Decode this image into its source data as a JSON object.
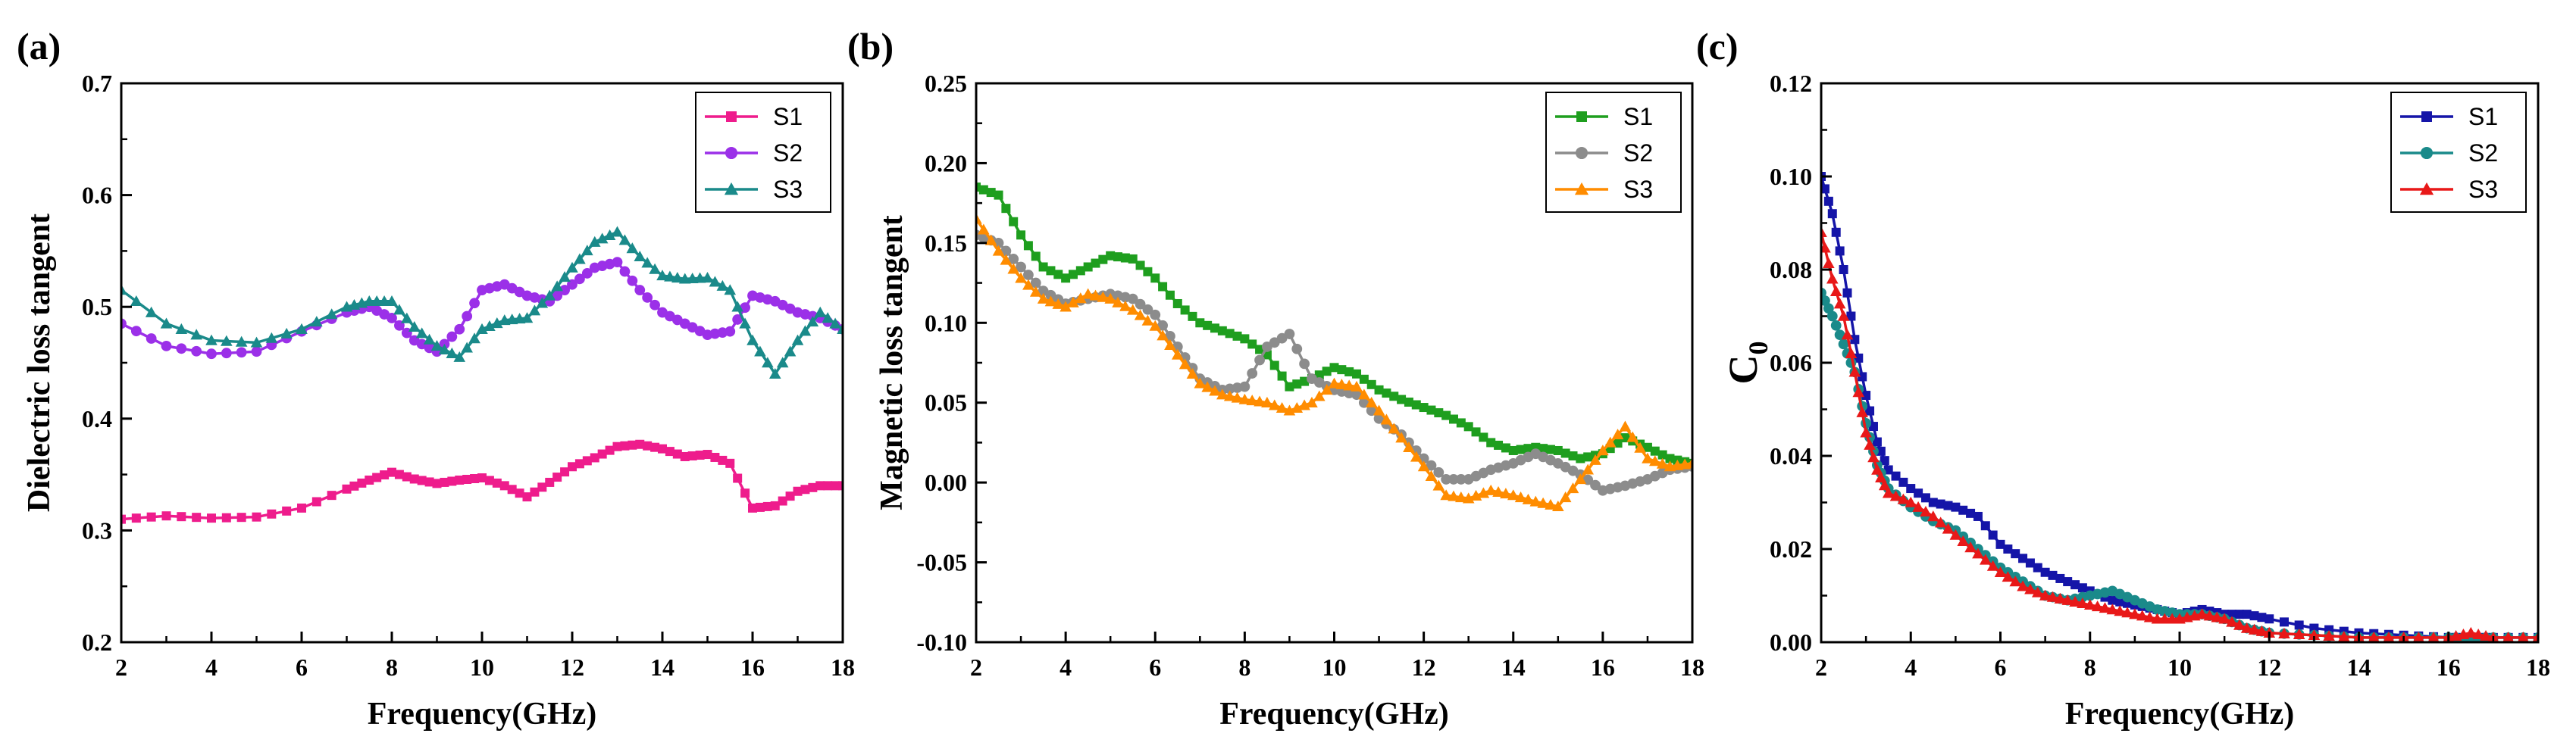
{
  "chart_data": [
    {
      "type": "line",
      "panel_label": "(a)",
      "xlabel": "Frequency(GHz)",
      "ylabel": "Dielectric loss tangent",
      "xlim": [
        2,
        18
      ],
      "ylim": [
        0.2,
        0.7
      ],
      "xticks": [
        "2",
        "4",
        "6",
        "8",
        "10",
        "12",
        "14",
        "16",
        "18"
      ],
      "yticks": [
        "0.2",
        "0.3",
        "0.4",
        "0.5",
        "0.6",
        "0.7"
      ],
      "legend_position": "top-right",
      "x": [
        2,
        3,
        4,
        5,
        6,
        7,
        7.5,
        8,
        8.5,
        9,
        9.5,
        10,
        10.5,
        11,
        11.5,
        12,
        12.5,
        13,
        13.5,
        14,
        14.5,
        15,
        15.5,
        16,
        16.5,
        17,
        17.5,
        18
      ],
      "series": [
        {
          "name": "S1",
          "color": "#ee1c8c",
          "marker": "square",
          "values": [
            0.31,
            0.313,
            0.311,
            0.312,
            0.32,
            0.337,
            0.345,
            0.352,
            0.346,
            0.342,
            0.345,
            0.347,
            0.34,
            0.33,
            0.343,
            0.357,
            0.365,
            0.375,
            0.377,
            0.373,
            0.366,
            0.368,
            0.36,
            0.32,
            0.322,
            0.335,
            0.34,
            0.34
          ]
        },
        {
          "name": "S2",
          "color": "#9b30e8",
          "marker": "circle",
          "values": [
            0.485,
            0.465,
            0.458,
            0.46,
            0.478,
            0.495,
            0.5,
            0.49,
            0.47,
            0.46,
            0.48,
            0.515,
            0.52,
            0.51,
            0.505,
            0.52,
            0.535,
            0.54,
            0.515,
            0.495,
            0.485,
            0.475,
            0.478,
            0.51,
            0.505,
            0.495,
            0.49,
            0.48
          ]
        },
        {
          "name": "S3",
          "color": "#1a8a8a",
          "marker": "triangle",
          "values": [
            0.515,
            0.485,
            0.47,
            0.468,
            0.48,
            0.5,
            0.505,
            0.505,
            0.482,
            0.465,
            0.455,
            0.48,
            0.488,
            0.49,
            0.51,
            0.535,
            0.558,
            0.567,
            0.545,
            0.528,
            0.525,
            0.526,
            0.515,
            0.47,
            0.44,
            0.47,
            0.495,
            0.48
          ]
        }
      ]
    },
    {
      "type": "line",
      "panel_label": "(b)",
      "xlabel": "Frequency(GHz)",
      "ylabel": "Magnetic loss tangent",
      "xlim": [
        2,
        18
      ],
      "ylim": [
        -0.1,
        0.25
      ],
      "xticks": [
        "2",
        "4",
        "6",
        "8",
        "10",
        "12",
        "14",
        "16",
        "18"
      ],
      "yticks": [
        "-0.10",
        "-0.05",
        "0.00",
        "0.05",
        "0.10",
        "0.15",
        "0.20",
        "0.25"
      ],
      "legend_position": "top-right",
      "x": [
        2,
        2.5,
        3,
        3.5,
        4,
        4.5,
        5,
        5.5,
        6,
        6.5,
        7,
        7.5,
        8,
        8.5,
        9,
        9.5,
        10,
        10.5,
        11,
        11.5,
        12,
        12.5,
        13,
        13.5,
        14,
        14.5,
        15,
        15.5,
        16,
        16.5,
        17,
        17.5,
        18
      ],
      "series": [
        {
          "name": "S1",
          "color": "#1e9e1e",
          "marker": "square",
          "values": [
            0.185,
            0.18,
            0.155,
            0.135,
            0.128,
            0.135,
            0.142,
            0.14,
            0.128,
            0.112,
            0.1,
            0.095,
            0.09,
            0.08,
            0.06,
            0.065,
            0.072,
            0.068,
            0.058,
            0.052,
            0.047,
            0.042,
            0.035,
            0.025,
            0.02,
            0.022,
            0.02,
            0.015,
            0.018,
            0.028,
            0.022,
            0.015,
            0.012
          ]
        },
        {
          "name": "S2",
          "color": "#8c8c8c",
          "marker": "circle",
          "values": [
            0.155,
            0.15,
            0.135,
            0.12,
            0.112,
            0.115,
            0.118,
            0.115,
            0.105,
            0.085,
            0.065,
            0.058,
            0.06,
            0.085,
            0.093,
            0.065,
            0.058,
            0.055,
            0.04,
            0.03,
            0.015,
            0.002,
            0.002,
            0.008,
            0.012,
            0.018,
            0.012,
            0.005,
            -0.005,
            -0.002,
            0.002,
            0.008,
            0.01
          ]
        },
        {
          "name": "S3",
          "color": "#ff8c00",
          "marker": "triangle",
          "values": [
            0.165,
            0.145,
            0.128,
            0.115,
            0.11,
            0.118,
            0.115,
            0.108,
            0.098,
            0.08,
            0.062,
            0.055,
            0.052,
            0.05,
            0.045,
            0.05,
            0.062,
            0.06,
            0.045,
            0.028,
            0.01,
            -0.008,
            -0.01,
            -0.005,
            -0.008,
            -0.012,
            -0.015,
            0.002,
            0.02,
            0.035,
            0.015,
            0.01,
            0.012
          ]
        }
      ]
    },
    {
      "type": "line",
      "panel_label": "(c)",
      "xlabel": "Frequency(GHz)",
      "ylabel": "C",
      "ylabel_sub": "0",
      "xlim": [
        2,
        18
      ],
      "ylim": [
        0,
        0.12
      ],
      "xticks": [
        "2",
        "4",
        "6",
        "8",
        "10",
        "12",
        "14",
        "16",
        "18"
      ],
      "yticks": [
        "0.00",
        "0.02",
        "0.04",
        "0.06",
        "0.08",
        "0.10",
        "0.12"
      ],
      "legend_position": "top-right",
      "x": [
        2,
        2.25,
        2.5,
        2.75,
        3,
        3.25,
        3.5,
        4,
        4.5,
        5,
        5.5,
        6,
        6.5,
        7,
        7.5,
        8,
        8.5,
        9,
        9.5,
        10,
        10.5,
        11,
        11.5,
        12,
        13,
        14,
        15,
        16,
        16.5,
        17,
        18
      ],
      "series": [
        {
          "name": "S1",
          "color": "#1515a8",
          "marker": "square",
          "values": [
            0.1,
            0.092,
            0.08,
            0.065,
            0.053,
            0.043,
            0.037,
            0.033,
            0.03,
            0.029,
            0.027,
            0.021,
            0.018,
            0.015,
            0.013,
            0.011,
            0.009,
            0.008,
            0.007,
            0.006,
            0.007,
            0.006,
            0.006,
            0.005,
            0.003,
            0.002,
            0.0015,
            0.001,
            0.001,
            0.001,
            0.001
          ]
        },
        {
          "name": "S2",
          "color": "#1a8a8a",
          "marker": "circle",
          "values": [
            0.075,
            0.07,
            0.064,
            0.058,
            0.047,
            0.038,
            0.033,
            0.029,
            0.026,
            0.024,
            0.02,
            0.016,
            0.013,
            0.01,
            0.009,
            0.01,
            0.011,
            0.009,
            0.007,
            0.006,
            0.006,
            0.005,
            0.003,
            0.002,
            0.0015,
            0.001,
            0.001,
            0.001,
            0.001,
            0.001,
            0.001
          ]
        },
        {
          "name": "S3",
          "color": "#e81818",
          "marker": "triangle",
          "values": [
            0.088,
            0.078,
            0.07,
            0.058,
            0.045,
            0.037,
            0.032,
            0.03,
            0.027,
            0.023,
            0.019,
            0.015,
            0.012,
            0.01,
            0.009,
            0.008,
            0.007,
            0.006,
            0.005,
            0.005,
            0.006,
            0.005,
            0.003,
            0.002,
            0.0015,
            0.001,
            0.001,
            0.001,
            0.002,
            0.001,
            0.001
          ]
        }
      ]
    }
  ]
}
